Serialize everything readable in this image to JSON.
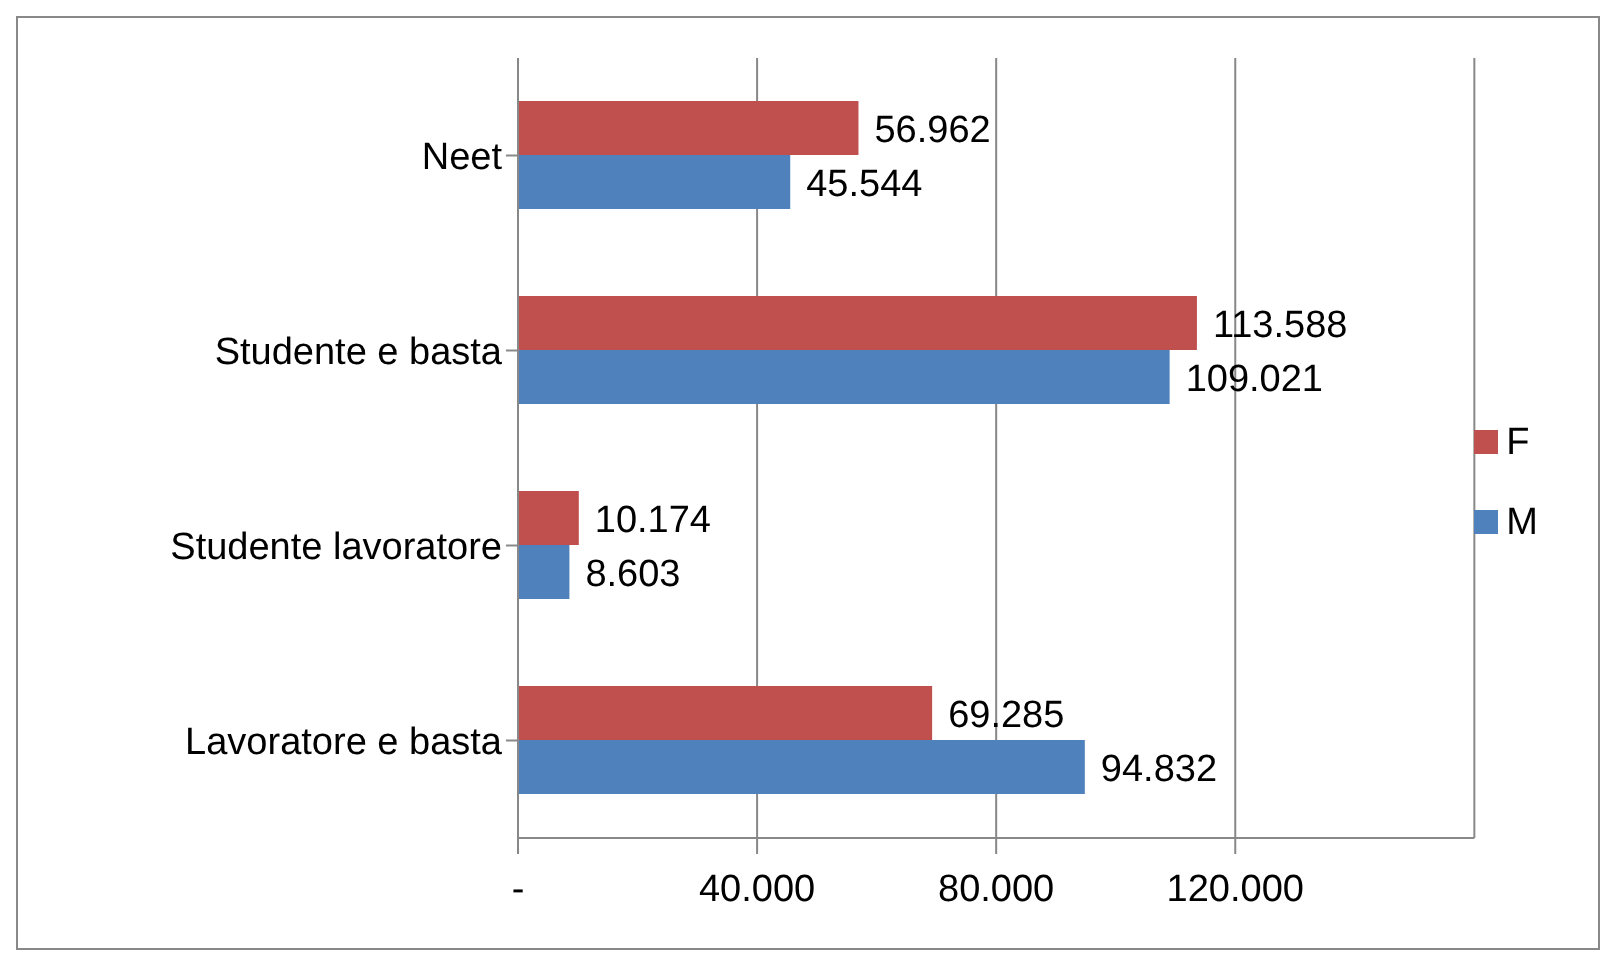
{
  "chart_data": {
    "type": "bar",
    "orientation": "horizontal",
    "categories": [
      "Neet",
      "Studente  e basta",
      "Studente lavoratore",
      "Lavoratore e basta"
    ],
    "series": [
      {
        "name": "F",
        "color": "#c0504d",
        "values": [
          56962,
          113588,
          10174,
          69285
        ],
        "value_labels": [
          "56.962",
          "113.588",
          "10.174",
          "69.285"
        ]
      },
      {
        "name": "M",
        "color": "#4f81bd",
        "values": [
          45544,
          109021,
          8603,
          94832
        ],
        "value_labels": [
          "45.544",
          "109.021",
          "8.603",
          "94.832"
        ]
      }
    ],
    "xlim": [
      0,
      160000
    ],
    "xticks": [
      {
        "value": 0,
        "label": "-"
      },
      {
        "value": 40000,
        "label": "40.000"
      },
      {
        "value": 80000,
        "label": "80.000"
      },
      {
        "value": 120000,
        "label": "120.000"
      }
    ],
    "grid": "x",
    "legend": "right"
  }
}
